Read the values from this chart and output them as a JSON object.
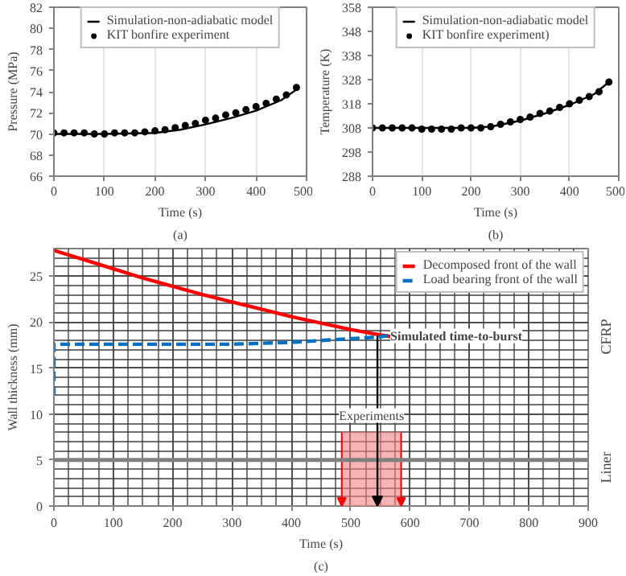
{
  "chart_data": [
    {
      "type": "line",
      "xlabel": "Time (s)",
      "ylabel": "Pressure (MPa)",
      "annotations": [
        "(a)"
      ],
      "xlim": [
        0,
        500
      ],
      "xticks": [
        0,
        100,
        200,
        300,
        400,
        500
      ],
      "ylim": [
        66,
        82
      ],
      "yticks": [
        66,
        68,
        70,
        72,
        74,
        76,
        78,
        80,
        82
      ],
      "grid": "x",
      "legend": "top",
      "series": [
        {
          "name": "Simulation-non-adiabatic model",
          "type": "line",
          "color": "#000000",
          "x": [
            0,
            100,
            200,
            250,
            300,
            350,
            400,
            450,
            480
          ],
          "values": [
            70.0,
            70.0,
            70.1,
            70.4,
            70.9,
            71.5,
            72.2,
            73.2,
            74.2
          ]
        },
        {
          "name": "KIT bonfire experiment",
          "type": "scatter",
          "marker": "circle",
          "color": "#000000",
          "x": [
            0,
            20,
            40,
            60,
            80,
            100,
            120,
            140,
            160,
            180,
            200,
            220,
            240,
            260,
            280,
            300,
            320,
            340,
            360,
            380,
            400,
            420,
            440,
            460,
            480
          ],
          "values": [
            70.1,
            70.1,
            70.1,
            70.1,
            70.0,
            70.0,
            70.1,
            70.1,
            70.1,
            70.2,
            70.3,
            70.4,
            70.6,
            70.8,
            71.0,
            71.3,
            71.5,
            71.8,
            72.0,
            72.3,
            72.6,
            72.9,
            73.3,
            73.7,
            74.4
          ]
        }
      ]
    },
    {
      "type": "line",
      "xlabel": "Time (s)",
      "ylabel": "Temperature (K)",
      "annotations": [
        "(b)"
      ],
      "xlim": [
        0,
        500
      ],
      "xticks": [
        0,
        100,
        200,
        300,
        400,
        500
      ],
      "ylim": [
        288,
        358
      ],
      "yticks": [
        288,
        298,
        308,
        318,
        328,
        338,
        348,
        358
      ],
      "grid": "x",
      "legend": "top",
      "series": [
        {
          "name": "Simulation-non-adiabatic model",
          "type": "line",
          "color": "#000000",
          "x": [
            0,
            100,
            200,
            240,
            300,
            350,
            400,
            450,
            480
          ],
          "values": [
            308,
            308,
            308,
            308.5,
            311,
            314,
            317.5,
            322,
            327
          ]
        },
        {
          "name": "KIT bonfire experiment)",
          "type": "scatter",
          "marker": "circle",
          "color": "#000000",
          "x": [
            0,
            20,
            40,
            60,
            80,
            100,
            120,
            140,
            160,
            180,
            200,
            220,
            240,
            260,
            280,
            300,
            320,
            340,
            360,
            380,
            400,
            420,
            440,
            460,
            480
          ],
          "values": [
            308,
            308,
            308,
            308,
            308,
            307.5,
            307.5,
            307.5,
            307.5,
            308,
            308,
            308,
            308.5,
            309.5,
            310.5,
            311.5,
            312.5,
            314,
            315,
            316.5,
            318,
            319.5,
            321,
            323,
            327
          ]
        }
      ]
    },
    {
      "type": "line",
      "xlabel": "Time (s)",
      "ylabel": "Wall thickness (mm)",
      "xlim": [
        0,
        900
      ],
      "xticks": [
        0,
        100,
        200,
        300,
        400,
        500,
        600,
        700,
        800,
        900
      ],
      "ylim": [
        0,
        28
      ],
      "yticks": [
        0,
        5,
        10,
        15,
        20,
        25
      ],
      "grid": true,
      "legend": "top right",
      "annotations": [
        "(c)",
        {
          "text": "Simulated time-to-burst",
          "x": 545,
          "y": 18.5
        },
        {
          "text": "Experiments",
          "x": 535,
          "y": 8
        },
        "CFRP",
        "Liner"
      ],
      "ref_lines": [
        {
          "axis": "y",
          "value": 5,
          "color": "#808080"
        }
      ],
      "bands": [
        {
          "axis": "x",
          "from": 485,
          "to": 585,
          "color": "#f08080"
        }
      ],
      "series": [
        {
          "name": "Decomposed front of the wall",
          "type": "line",
          "line_style": "solid",
          "color": "#ff0000",
          "x": [
            0,
            50,
            100,
            150,
            200,
            250,
            300,
            350,
            400,
            450,
            500,
            550,
            570
          ],
          "values": [
            27.8,
            26.8,
            25.8,
            24.8,
            23.9,
            23.0,
            22.2,
            21.4,
            20.6,
            19.9,
            19.2,
            18.6,
            18.4
          ]
        },
        {
          "name": "Load bearing front of the wall",
          "type": "line",
          "line_style": "dashed",
          "color": "#0070c0",
          "x": [
            0,
            0,
            5,
            100,
            200,
            300,
            350,
            400,
            450,
            500,
            550,
            570
          ],
          "values": [
            12.0,
            17.6,
            17.6,
            17.6,
            17.6,
            17.6,
            17.7,
            17.8,
            18.0,
            18.2,
            18.4,
            18.6
          ]
        }
      ]
    }
  ]
}
